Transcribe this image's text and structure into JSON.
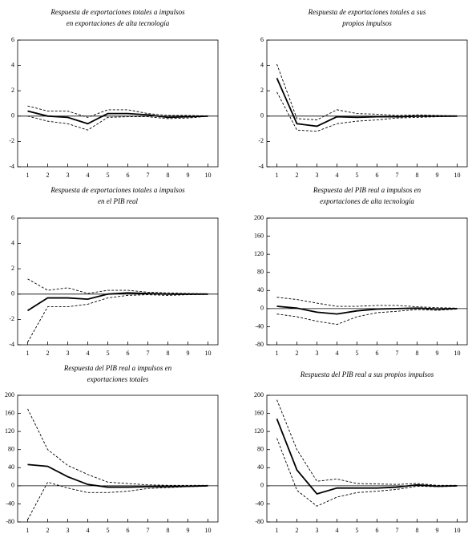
{
  "chart_data": [
    {
      "type": "line",
      "title": [
        "Respuesta de exportaciones totales a impulsos",
        "en exportaciones de alta tecnología"
      ],
      "x": [
        1,
        2,
        3,
        4,
        5,
        6,
        7,
        8,
        9,
        10
      ],
      "xlim": [
        0.5,
        10.5
      ],
      "xticks": [
        1,
        2,
        3,
        4,
        5,
        6,
        7,
        8,
        9,
        10
      ],
      "ylim": [
        -4,
        6
      ],
      "yticks": [
        -4,
        -2,
        0,
        2,
        4,
        6
      ],
      "zero_line": true,
      "series": [
        {
          "color": "#000000",
          "style": "solid",
          "values": [
            0.4,
            0,
            -0.1,
            -0.6,
            0.2,
            0.2,
            0.1,
            -0.1,
            -0.05,
            0
          ]
        },
        {
          "color": "#000000",
          "style": "dashed",
          "values": [
            0.8,
            0.4,
            0.4,
            -0.1,
            0.5,
            0.5,
            0.2,
            0.05,
            0.05,
            0.02
          ]
        },
        {
          "color": "#000000",
          "style": "dashed",
          "values": [
            0,
            -0.4,
            -0.6,
            -1.1,
            -0.1,
            -0.05,
            -0.05,
            -0.2,
            -0.15,
            -0.02
          ]
        }
      ]
    },
    {
      "type": "line",
      "title": [
        "Respuesta de exportaciones totales a sus",
        "propios impulsos"
      ],
      "x": [
        1,
        2,
        3,
        4,
        5,
        6,
        7,
        8,
        9,
        10
      ],
      "xlim": [
        0.5,
        10.5
      ],
      "xticks": [
        1,
        2,
        3,
        4,
        5,
        6,
        7,
        8,
        9,
        10
      ],
      "ylim": [
        -4,
        6
      ],
      "yticks": [
        -4,
        -2,
        0,
        2,
        4,
        6
      ],
      "zero_line": true,
      "series": [
        {
          "color": "#000000",
          "style": "solid",
          "values": [
            3.0,
            -0.6,
            -0.8,
            -0.05,
            -0.1,
            -0.05,
            -0.05,
            0,
            0,
            0
          ]
        },
        {
          "color": "#000000",
          "style": "dashed",
          "values": [
            4.1,
            -0.2,
            -0.3,
            0.5,
            0.2,
            0.15,
            0.05,
            0.1,
            0.05,
            0.02
          ]
        },
        {
          "color": "#000000",
          "style": "dashed",
          "values": [
            1.9,
            -1.1,
            -1.2,
            -0.6,
            -0.4,
            -0.3,
            -0.15,
            -0.1,
            -0.05,
            -0.02
          ]
        }
      ]
    },
    {
      "type": "line",
      "title": [
        "Respuesta de exportaciones totales a impulsos",
        "en el PIB real"
      ],
      "x": [
        1,
        2,
        3,
        4,
        5,
        6,
        7,
        8,
        9,
        10
      ],
      "xlim": [
        0.5,
        10.5
      ],
      "xticks": [
        1,
        2,
        3,
        4,
        5,
        6,
        7,
        8,
        9,
        10
      ],
      "ylim": [
        -4,
        6
      ],
      "yticks": [
        -4,
        -2,
        0,
        2,
        4,
        6
      ],
      "zero_line": true,
      "series": [
        {
          "color": "#000000",
          "style": "solid",
          "values": [
            -1.3,
            -0.3,
            -0.3,
            -0.4,
            0,
            0.1,
            0.05,
            0,
            0,
            0
          ]
        },
        {
          "color": "#000000",
          "style": "dashed",
          "values": [
            1.2,
            0.3,
            0.5,
            0.05,
            0.3,
            0.3,
            0.15,
            0.1,
            0.05,
            0.02
          ]
        },
        {
          "color": "#000000",
          "style": "dashed",
          "values": [
            -3.8,
            -1.0,
            -1.0,
            -0.8,
            -0.3,
            -0.1,
            -0.05,
            -0.1,
            -0.05,
            -0.02
          ]
        }
      ]
    },
    {
      "type": "line",
      "title": [
        "Respuesta del PIB real a impulsos en",
        "exportaciones de alta tecnología"
      ],
      "x": [
        1,
        2,
        3,
        4,
        5,
        6,
        7,
        8,
        9,
        10
      ],
      "xlim": [
        0.5,
        10.5
      ],
      "xticks": [
        1,
        2,
        3,
        4,
        5,
        6,
        7,
        8,
        9,
        10
      ],
      "ylim": [
        -80,
        200
      ],
      "yticks": [
        -80,
        -40,
        0,
        40,
        80,
        120,
        160,
        200
      ],
      "zero_line": true,
      "series": [
        {
          "color": "#000000",
          "style": "solid",
          "values": [
            5,
            1,
            -8,
            -12,
            -5,
            -1,
            0,
            1,
            -1,
            0
          ]
        },
        {
          "color": "#000000",
          "style": "dashed",
          "values": [
            25,
            20,
            12,
            5,
            5,
            7,
            7,
            4,
            2,
            1
          ]
        },
        {
          "color": "#000000",
          "style": "dashed",
          "values": [
            -12,
            -18,
            -28,
            -35,
            -18,
            -9,
            -6,
            -2,
            -4,
            -1
          ]
        }
      ]
    },
    {
      "type": "line",
      "title": [
        "Respuesta del PIB real a impulsos en",
        "exportaciones totales"
      ],
      "x": [
        1,
        2,
        3,
        4,
        5,
        6,
        7,
        8,
        9,
        10
      ],
      "xlim": [
        0.5,
        10.5
      ],
      "xticks": [
        1,
        2,
        3,
        4,
        5,
        6,
        7,
        8,
        9,
        10
      ],
      "ylim": [
        -80,
        200
      ],
      "yticks": [
        -80,
        -40,
        0,
        40,
        80,
        120,
        160,
        200
      ],
      "zero_line": true,
      "series": [
        {
          "color": "#000000",
          "style": "solid",
          "values": [
            47,
            43,
            20,
            3,
            -3,
            -3,
            -2,
            -2,
            -1,
            0
          ]
        },
        {
          "color": "#000000",
          "style": "dashed",
          "values": [
            170,
            80,
            45,
            25,
            8,
            5,
            2,
            1,
            1,
            1
          ]
        },
        {
          "color": "#000000",
          "style": "dashed",
          "values": [
            -75,
            8,
            -5,
            -15,
            -15,
            -12,
            -6,
            -4,
            -2,
            -1
          ]
        }
      ]
    },
    {
      "type": "line",
      "title": [
        "Respuesta del PIB real a sus propios impulsos"
      ],
      "x": [
        1,
        2,
        3,
        4,
        5,
        6,
        7,
        8,
        9,
        10
      ],
      "xlim": [
        0.5,
        10.5
      ],
      "xticks": [
        1,
        2,
        3,
        4,
        5,
        6,
        7,
        8,
        9,
        10
      ],
      "ylim": [
        -80,
        200
      ],
      "yticks": [
        -80,
        -40,
        0,
        40,
        80,
        120,
        160,
        200
      ],
      "zero_line": true,
      "series": [
        {
          "color": "#000000",
          "style": "solid",
          "values": [
            148,
            35,
            -18,
            -5,
            -5,
            -5,
            -3,
            2,
            -1,
            0
          ]
        },
        {
          "color": "#000000",
          "style": "dashed",
          "values": [
            190,
            80,
            10,
            15,
            5,
            4,
            3,
            5,
            1,
            1
          ]
        },
        {
          "color": "#000000",
          "style": "dashed",
          "values": [
            105,
            -10,
            -45,
            -25,
            -15,
            -12,
            -8,
            -1,
            -2,
            -1
          ]
        }
      ]
    }
  ]
}
